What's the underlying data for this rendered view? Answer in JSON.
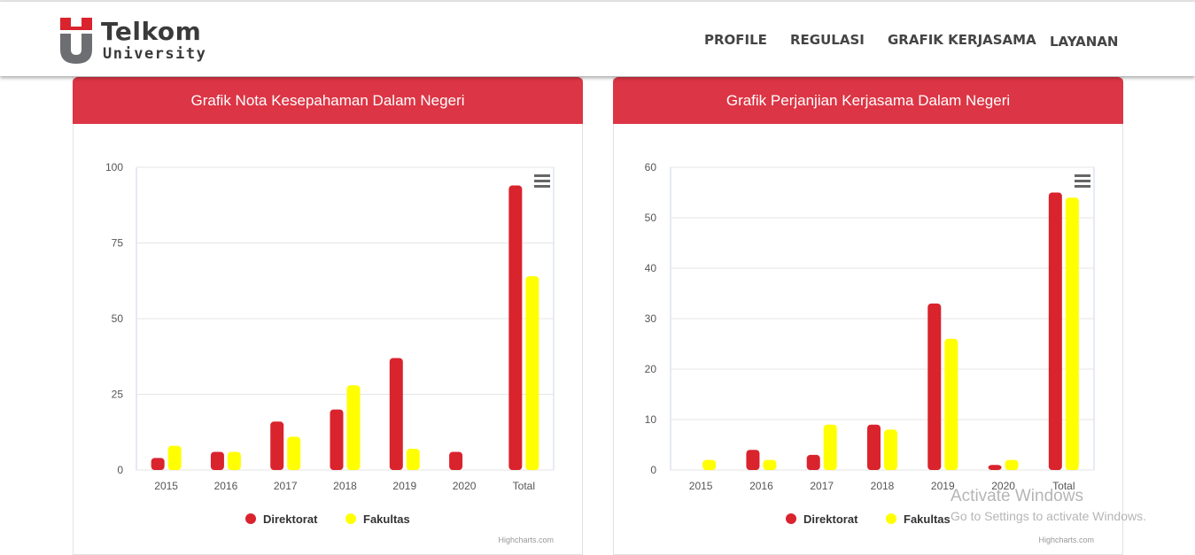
{
  "brand": {
    "word1": "Telkom",
    "word2": "University"
  },
  "nav": {
    "items": [
      "PROFILE",
      "REGULASI",
      "GRAFIK KERJASAMA",
      "LAYANAN"
    ]
  },
  "colors": {
    "header_red": "#dc3545",
    "direktorat": "#d9232d",
    "fakultas": "#ffff00"
  },
  "panels": [
    {
      "title": "Grafik Nota Kesepahaman Dalam Negeri"
    },
    {
      "title": "Grafik Perjanjian Kerjasama Dalam Negeri"
    }
  ],
  "chart_data": [
    {
      "type": "bar",
      "title": "",
      "categories": [
        "2015",
        "2016",
        "2017",
        "2018",
        "2019",
        "2020",
        "Total"
      ],
      "series": [
        {
          "name": "Direktorat",
          "values": [
            4,
            6,
            16,
            20,
            37,
            6,
            94
          ]
        },
        {
          "name": "Fakultas",
          "values": [
            8,
            6,
            11,
            28,
            7,
            0,
            64
          ]
        }
      ],
      "ylim": [
        0,
        100
      ],
      "yticks": [
        0,
        25,
        50,
        75,
        100
      ],
      "grid": true,
      "legend": "bottom-center",
      "credits": "Highcharts.com",
      "menu_icon": "hamburger-menu-icon"
    },
    {
      "type": "bar",
      "title": "",
      "categories": [
        "2015",
        "2016",
        "2017",
        "2018",
        "2019",
        "2020",
        "Total"
      ],
      "series": [
        {
          "name": "Direktorat",
          "values": [
            0,
            4,
            3,
            9,
            33,
            1,
            55
          ]
        },
        {
          "name": "Fakultas",
          "values": [
            2,
            2,
            9,
            8,
            26,
            2,
            54
          ]
        }
      ],
      "ylim": [
        0,
        60
      ],
      "yticks": [
        0,
        10,
        20,
        30,
        40,
        50,
        60
      ],
      "grid": true,
      "legend": "bottom-center",
      "credits": "Highcharts.com",
      "menu_icon": "hamburger-menu-icon"
    }
  ],
  "os_watermark": {
    "line1": "Activate Windows",
    "line2": "Go to Settings to activate Windows."
  }
}
